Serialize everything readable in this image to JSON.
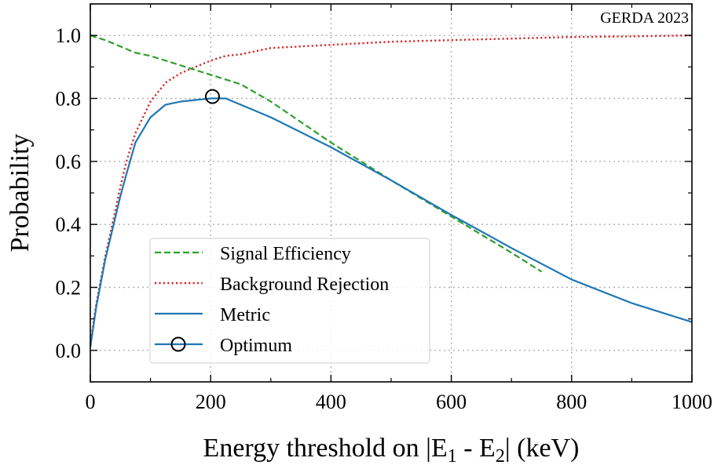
{
  "chart_data": {
    "type": "line",
    "annotation": "GERDA 2023",
    "xlabel": {
      "prefix": "Energy threshold on |E",
      "sub1": "1",
      "mid": " - E",
      "sub2": "2",
      "suffix": "| (keV)"
    },
    "ylabel": "Probability",
    "xlim": [
      0,
      1000
    ],
    "ylim": [
      -0.1,
      1.1
    ],
    "grid": true,
    "legend_position": "lower-left",
    "xticks": [
      0,
      200,
      400,
      600,
      800,
      1000
    ],
    "xtick_labels": [
      "0",
      "200",
      "400",
      "600",
      "800",
      "1000"
    ],
    "yticks": [
      0.0,
      0.2,
      0.4,
      0.6,
      0.8,
      1.0
    ],
    "ytick_labels": [
      "0.0",
      "0.2",
      "0.4",
      "0.6",
      "0.8",
      "1.0"
    ],
    "series": [
      {
        "name": "Signal Efficiency",
        "color": "#2ca02c",
        "style": "dashed",
        "x": [
          0,
          25,
          50,
          75,
          100,
          150,
          200,
          250,
          300,
          400,
          500,
          600,
          700,
          750
        ],
        "y": [
          1.0,
          0.985,
          0.965,
          0.945,
          0.935,
          0.905,
          0.875,
          0.845,
          0.79,
          0.66,
          0.54,
          0.425,
          0.31,
          0.25
        ]
      },
      {
        "name": "Background Rejection",
        "color": "#d62728",
        "style": "dotted",
        "x": [
          0,
          10,
          25,
          40,
          50,
          60,
          75,
          100,
          125,
          150,
          175,
          200,
          225,
          250,
          300,
          400,
          500,
          600,
          700,
          800,
          900,
          1000
        ],
        "y": [
          0.02,
          0.15,
          0.3,
          0.43,
          0.52,
          0.6,
          0.69,
          0.79,
          0.85,
          0.88,
          0.9,
          0.92,
          0.935,
          0.94,
          0.96,
          0.97,
          0.98,
          0.985,
          0.99,
          0.995,
          0.997,
          1.0
        ]
      },
      {
        "name": "Metric",
        "color": "#1f77b4",
        "style": "solid",
        "x": [
          0,
          10,
          25,
          40,
          50,
          60,
          75,
          100,
          125,
          150,
          175,
          200,
          225,
          250,
          300,
          400,
          500,
          600,
          700,
          800,
          900,
          1000
        ],
        "y": [
          0.01,
          0.14,
          0.29,
          0.41,
          0.49,
          0.56,
          0.66,
          0.74,
          0.78,
          0.79,
          0.795,
          0.8,
          0.8,
          0.78,
          0.74,
          0.645,
          0.54,
          0.43,
          0.325,
          0.225,
          0.15,
          0.09
        ]
      }
    ],
    "optimum": {
      "name": "Optimum",
      "x": 203,
      "y": 0.806,
      "color": "#1f77b4"
    }
  }
}
